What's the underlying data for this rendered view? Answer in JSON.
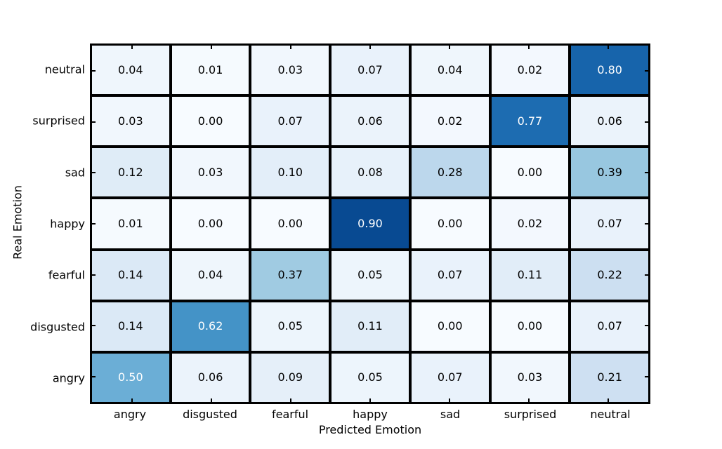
{
  "figure": {
    "background_color": "#ffffff",
    "grid_line_color": "#000000",
    "border_color": "#000000",
    "cell_text_dark": "#000000",
    "cell_text_light": "#ffffff"
  },
  "chart_data": {
    "type": "heatmap",
    "title": "",
    "xlabel": "Predicted Emotion",
    "ylabel": "Real Emotion",
    "x_categories": [
      "angry",
      "disgusted",
      "fearful",
      "happy",
      "sad",
      "surprised",
      "neutral"
    ],
    "y_categories": [
      "neutral",
      "surprised",
      "sad",
      "happy",
      "fearful",
      "disgusted",
      "angry"
    ],
    "values": [
      [
        0.04,
        0.01,
        0.03,
        0.07,
        0.04,
        0.02,
        0.8
      ],
      [
        0.03,
        0.0,
        0.07,
        0.06,
        0.02,
        0.77,
        0.06
      ],
      [
        0.12,
        0.03,
        0.1,
        0.08,
        0.28,
        0.0,
        0.39
      ],
      [
        0.01,
        0.0,
        0.0,
        0.9,
        0.0,
        0.02,
        0.07
      ],
      [
        0.14,
        0.04,
        0.37,
        0.05,
        0.07,
        0.11,
        0.22
      ],
      [
        0.14,
        0.62,
        0.05,
        0.11,
        0.0,
        0.0,
        0.07
      ],
      [
        0.5,
        0.06,
        0.09,
        0.05,
        0.07,
        0.03,
        0.21
      ]
    ],
    "value_format_decimals": 2,
    "colormap": "Blues",
    "vmin": 0,
    "vmax": 1,
    "white_text_threshold": 0.5,
    "legend": "none",
    "grid": "cell-borders",
    "colormap_stops": [
      [
        0.0,
        [
          247,
          251,
          255
        ]
      ],
      [
        0.125,
        [
          222,
          235,
          247
        ]
      ],
      [
        0.25,
        [
          198,
          219,
          239
        ]
      ],
      [
        0.375,
        [
          158,
          202,
          225
        ]
      ],
      [
        0.5,
        [
          107,
          174,
          214
        ]
      ],
      [
        0.625,
        [
          66,
          146,
          198
        ]
      ],
      [
        0.75,
        [
          33,
          113,
          181
        ]
      ],
      [
        0.875,
        [
          8,
          81,
          156
        ]
      ],
      [
        1.0,
        [
          8,
          48,
          107
        ]
      ]
    ]
  }
}
